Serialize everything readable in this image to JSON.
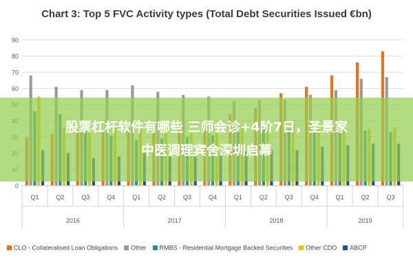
{
  "chart_data": {
    "type": "bar",
    "title": "Chart 3: Top 5 FVC Activity types (Total Debt Securities Issued €bn)",
    "xlabel": "",
    "ylabel": "",
    "ylim": [
      0,
      90
    ],
    "y_ticks": [
      "0",
      "10",
      "20",
      "30",
      "40",
      "50",
      "60",
      "70",
      "80",
      "90"
    ],
    "grid": true,
    "legend_position": "bottom",
    "categories": [
      "Q1",
      "Q2",
      "Q3",
      "Q4",
      "Q1",
      "Q2",
      "Q3",
      "Q4",
      "Q1",
      "Q2",
      "Q3",
      "Q4",
      "Q1",
      "Q2",
      "Q3"
    ],
    "year_groups": [
      {
        "label": "2016",
        "count": 4
      },
      {
        "label": "2017",
        "count": 4
      },
      {
        "label": "2018",
        "count": 4
      },
      {
        "label": "2019",
        "count": 3
      }
    ],
    "series": [
      {
        "name": "CLO - Collateralised Loan Obligations",
        "color": "#e8731d",
        "values": [
          30,
          32,
          33,
          34,
          35,
          36,
          37,
          38,
          44,
          48,
          57,
          61,
          68,
          76,
          83
        ]
      },
      {
        "name": "Other",
        "color": "#9a9a9a",
        "values": [
          68,
          61,
          59,
          59,
          62,
          58,
          56,
          55,
          52,
          53,
          53,
          56,
          59,
          66,
          67
        ]
      },
      {
        "name": "RMBS - Residential Mortgage Backed Securities",
        "color": "#2e8c8c",
        "values": [
          46,
          44,
          34,
          31,
          28,
          29,
          30,
          31,
          33,
          36,
          35,
          34,
          36,
          34,
          33
        ]
      },
      {
        "name": "Other CDO",
        "color": "#e2c21c",
        "values": [
          55,
          36,
          36,
          37,
          36,
          36,
          32,
          33,
          36,
          38,
          38,
          37,
          36,
          35,
          36
        ]
      },
      {
        "name": "ABCP",
        "color": "#1e4ea0",
        "values": [
          22,
          20,
          17,
          18,
          20,
          18,
          18,
          19,
          21,
          22,
          22,
          24,
          25,
          26,
          26
        ]
      }
    ]
  },
  "watermark": {
    "line1": "股票杠杆软件有哪些 三师会诊+4阶7日，圣景家",
    "line2": "中医调理宾舍深圳启幕"
  }
}
